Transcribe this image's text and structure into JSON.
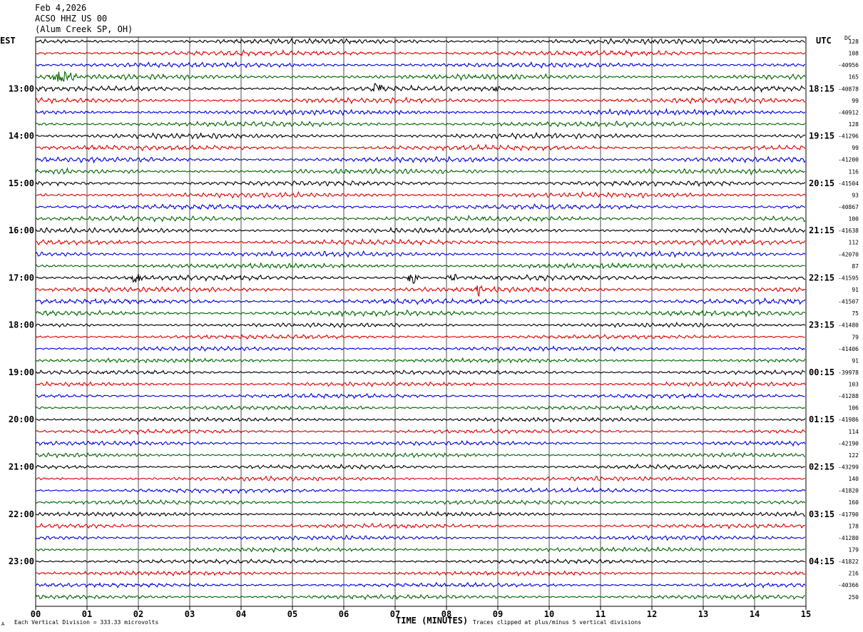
{
  "header": {
    "date": "Feb 4,2026",
    "station": "ACSO HHZ US 00",
    "location": "(Alum Creek SP, OH)"
  },
  "axes": {
    "left_tz": "EST",
    "right_tz": "UTC",
    "dc_label": "DC",
    "x_title": "TIME (MINUTES)"
  },
  "footer": {
    "scale_note": "Each Vertical Division =  333.33 microvolts",
    "clip_note": "Traces clipped at plus/minus 5 vertical divisions",
    "corner_mark": "A"
  },
  "colors": {
    "trace_cycle": [
      "#000000",
      "#dd0000",
      "#0000dd",
      "#006600"
    ],
    "grid": "#000000",
    "background": "#ffffff"
  },
  "chart_data": {
    "type": "line",
    "title": "ACSO HHZ US 00 (Alum Creek SP, OH)",
    "xlabel": "TIME (MINUTES)",
    "xlim": [
      0,
      15
    ],
    "x_ticks": [
      "00",
      "01",
      "02",
      "03",
      "04",
      "05",
      "06",
      "07",
      "08",
      "09",
      "10",
      "11",
      "12",
      "13",
      "14",
      "15"
    ],
    "est_labels": [
      "13:00",
      "14:00",
      "15:00",
      "16:00",
      "17:00",
      "18:00",
      "19:00",
      "20:00",
      "21:00",
      "22:00",
      "23:00"
    ],
    "utc_labels": [
      "18:15",
      "19:15",
      "20:15",
      "21:15",
      "22:15",
      "23:15",
      "00:15",
      "01:15",
      "02:15",
      "03:15",
      "04:15"
    ],
    "trace_count": 48,
    "first_labelled_trace": 4,
    "dc_offsets": [
      "128",
      "108",
      "-40956",
      "165",
      "-40878",
      "99",
      "-40912",
      "128",
      "-41296",
      "99",
      "-41200",
      "116",
      "-41504",
      "93",
      "-40867",
      "100",
      "-41638",
      "112",
      "-42070",
      "87",
      "-41595",
      "91",
      "-41507",
      "75",
      "-41480",
      "79",
      "-41406",
      "91",
      "-39978",
      "103",
      "-41288",
      "106",
      "-41986",
      "114",
      "-42190",
      "122",
      "-43299",
      "140",
      "-41820",
      "160",
      "-41790",
      "178",
      "-41280",
      "179",
      "-41822",
      "216",
      "-40366",
      "250"
    ],
    "amplitude_scale_microvolts_per_division": 333.33,
    "clip_divisions": 5,
    "events": [
      {
        "trace": 3,
        "minute_start": 0.1,
        "minute_end": 0.9,
        "amplitude": 8
      },
      {
        "trace": 4,
        "minute_start": 6.5,
        "minute_end": 6.8,
        "amplitude": 9
      },
      {
        "trace": 4,
        "minute_start": 8.85,
        "minute_end": 9.05,
        "amplitude": 9
      },
      {
        "trace": 20,
        "minute_start": 1.8,
        "minute_end": 2.1,
        "amplitude": 9
      },
      {
        "trace": 20,
        "minute_start": 7.2,
        "minute_end": 7.5,
        "amplitude": 9
      },
      {
        "trace": 20,
        "minute_start": 8.0,
        "minute_end": 8.25,
        "amplitude": 8
      },
      {
        "trace": 21,
        "minute_start": 8.55,
        "minute_end": 8.7,
        "amplitude": 12
      }
    ]
  }
}
